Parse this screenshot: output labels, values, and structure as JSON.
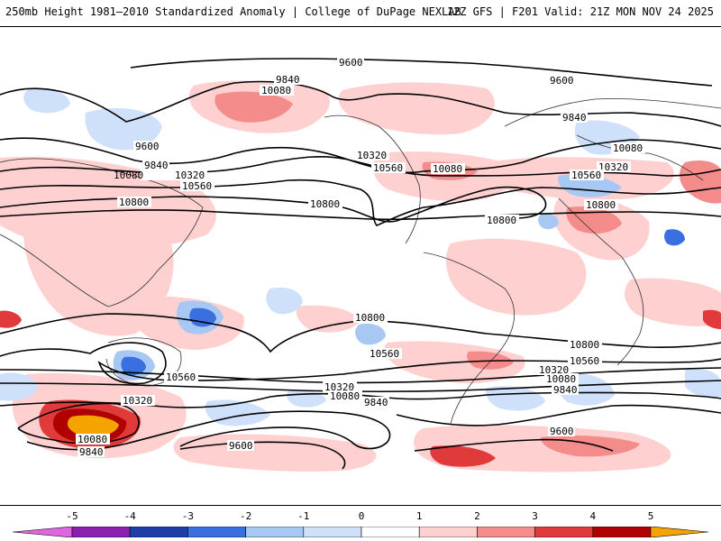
{
  "header": {
    "title": "250mb Height 1981–2010 Standardized Anomaly | College of DuPage NEXLAB",
    "run_info": "12Z GFS | F201 Valid: 21Z MON NOV 24 2025"
  },
  "contour_labels": {
    "c9600": "9600",
    "c9840": "9840",
    "c10080": "10080",
    "c10320": "10320",
    "c10560": "10560",
    "c10800": "10800"
  },
  "colorbar": {
    "ticks": [
      "-5",
      "-4",
      "-3",
      "-2",
      "-1",
      "0",
      "1",
      "2",
      "3",
      "4",
      "5"
    ],
    "colors": [
      "#e066e0",
      "#8a1fb0",
      "#1e3fa8",
      "#3a6fe0",
      "#a8c8f4",
      "#cfe0fa",
      "#ffffff",
      "#ffd0d0",
      "#f58c8c",
      "#e03a3a",
      "#b00000",
      "#f5a300"
    ]
  }
}
